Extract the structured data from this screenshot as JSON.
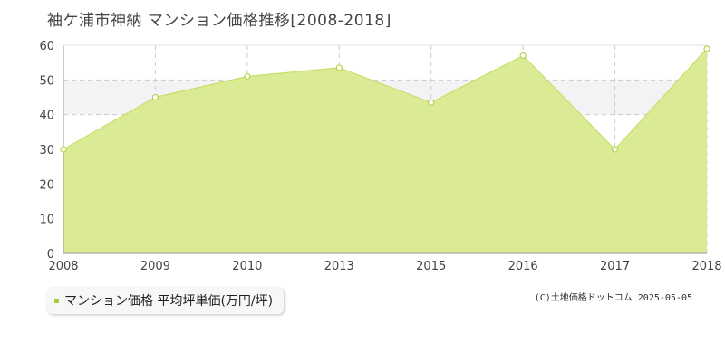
{
  "title": "袖ケ浦市神納 マンション価格推移[2008-2018]",
  "credit": "(C)土地価格ドットコム 2025-05-05",
  "colors": {
    "fill": "#dbeb95",
    "line": "#c5e06a",
    "marker_fill": "#ffffff",
    "marker_stroke": "#b6d44a",
    "legend_marker": "#a8cd3a",
    "grid": "#cccccc",
    "band": "#f5f2f6"
  },
  "chart_data": {
    "type": "area",
    "x_labels": [
      "2008",
      "2009",
      "2010",
      "2013",
      "2015",
      "2016",
      "2017",
      "2018"
    ],
    "series": [
      {
        "name": "マンション価格 平均坪単価(万円/坪)",
        "values": [
          30,
          45,
          51,
          53.5,
          43.5,
          57,
          30,
          59
        ]
      }
    ],
    "y_ticks": [
      "0",
      "10",
      "20",
      "30",
      "40",
      "50",
      "60"
    ],
    "ylim": [
      0,
      60
    ],
    "grid": true,
    "legend_position": "bottom-left"
  }
}
